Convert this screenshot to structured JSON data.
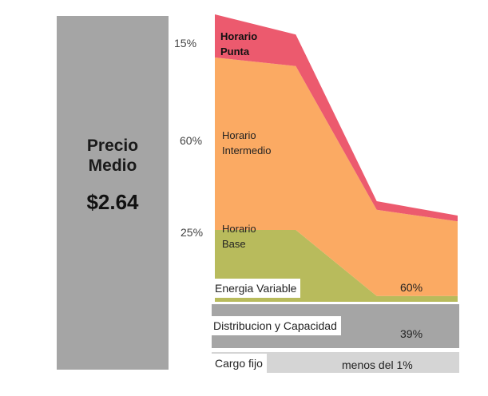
{
  "price": {
    "label": "Precio\nMedio",
    "value": "$2.64"
  },
  "chart_data": {
    "type": "area",
    "x": [
      0,
      1,
      2,
      3
    ],
    "series": [
      {
        "name": "Horario Base",
        "values": [
          25,
          25,
          2,
          2
        ],
        "color": "#b8bb5c"
      },
      {
        "name": "Horario Intermedio",
        "values": [
          60,
          57,
          30,
          26
        ],
        "color": "#fbaa63"
      },
      {
        "name": "Horario Punta",
        "values": [
          15,
          11,
          3,
          2
        ],
        "color": "#ec5a6e"
      }
    ],
    "ylim": [
      0,
      100
    ],
    "percent_labels": [
      "15%",
      "60%",
      "25%"
    ],
    "series_labels": [
      "Horario\nPunta",
      "Horario\nIntermedio",
      "Horario\nBase"
    ]
  },
  "rows": [
    {
      "label": "Energia Variable",
      "value": "60%"
    },
    {
      "label": "Distribucion y Capacidad",
      "value": "39%"
    },
    {
      "label": "Cargo fijo",
      "value": "menos del 1%"
    }
  ]
}
